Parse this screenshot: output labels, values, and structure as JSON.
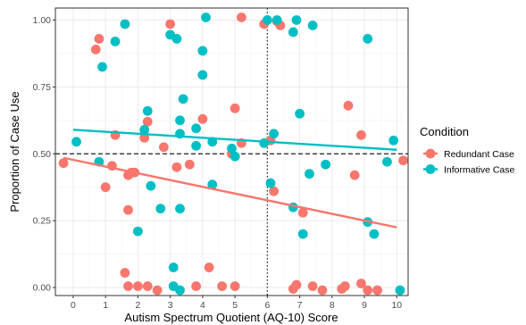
{
  "chart_data": {
    "type": "scatter",
    "xlabel": "Autism Spectrum Quotient (AQ-10) Score",
    "ylabel": "Proportion of Case Use",
    "xlim": [
      -0.55,
      10.35
    ],
    "ylim": [
      -0.03,
      1.045
    ],
    "x_ticks": [
      "0",
      "1",
      "2",
      "3",
      "4",
      "5",
      "6",
      "7",
      "8",
      "9",
      "10"
    ],
    "y_ticks": [
      "0.00",
      "0.25",
      "0.50",
      "0.75",
      "1.00"
    ],
    "grid": true,
    "reference_lines": {
      "horizontal_dashed_y": 0.5,
      "vertical_dotted_x": 6
    },
    "legend_title": "Condition",
    "legend_position": "right",
    "series": [
      {
        "name": "Redundant Case",
        "color": "#F8766D",
        "trend": [
          [
            -0.3,
            0.485
          ],
          [
            10,
            0.225
          ]
        ],
        "points": [
          [
            -0.3,
            0.465
          ],
          [
            0.7,
            0.89
          ],
          [
            0.8,
            0.93
          ],
          [
            1,
            0.375
          ],
          [
            1.2,
            0.455
          ],
          [
            1.3,
            0.57
          ],
          [
            1.6,
            0.055
          ],
          [
            1.7,
            0.42
          ],
          [
            1.7,
            0.29
          ],
          [
            1.7,
            0.005
          ],
          [
            1.8,
            0.43
          ],
          [
            1.9,
            0.43
          ],
          [
            2,
            0.005
          ],
          [
            2.2,
            0.56
          ],
          [
            2.3,
            0.62
          ],
          [
            2.3,
            0.005
          ],
          [
            2.6,
            -0.01
          ],
          [
            2.8,
            0.525
          ],
          [
            3,
            0.985
          ],
          [
            3.2,
            0.45
          ],
          [
            3.6,
            0.46
          ],
          [
            3.8,
            0.005
          ],
          [
            4,
            0.63
          ],
          [
            4.2,
            0.075
          ],
          [
            4.6,
            0.005
          ],
          [
            4.9,
            0.5
          ],
          [
            5,
            0.67
          ],
          [
            5,
            0.005
          ],
          [
            5.2,
            1.01
          ],
          [
            5.2,
            0.54
          ],
          [
            5.9,
            0.985
          ],
          [
            6.1,
            0.55
          ],
          [
            6.2,
            0.36
          ],
          [
            6.3,
            0.995
          ],
          [
            6.4,
            0.98
          ],
          [
            6.8,
            -0.005
          ],
          [
            6.9,
            0.01
          ],
          [
            7.1,
            0.28
          ],
          [
            7.4,
            0.005
          ],
          [
            7.7,
            -0.01
          ],
          [
            8.3,
            -0.005
          ],
          [
            8.4,
            0.005
          ],
          [
            8.5,
            0.68
          ],
          [
            8.7,
            0.42
          ],
          [
            8.9,
            0.57
          ],
          [
            8.9,
            0.015
          ],
          [
            9.1,
            -0.01
          ],
          [
            9.4,
            -0.01
          ],
          [
            10.2,
            0.475
          ]
        ]
      },
      {
        "name": "Informative Case",
        "color": "#00BFC4",
        "trend": [
          [
            0,
            0.59
          ],
          [
            10,
            0.515
          ]
        ],
        "points": [
          [
            0.1,
            0.545
          ],
          [
            0.8,
            0.47
          ],
          [
            0.9,
            0.825
          ],
          [
            1.3,
            0.92
          ],
          [
            1.6,
            0.985
          ],
          [
            2,
            0.21
          ],
          [
            2.2,
            0.59
          ],
          [
            2.3,
            0.66
          ],
          [
            2.4,
            0.38
          ],
          [
            2.7,
            0.295
          ],
          [
            3,
            0.945
          ],
          [
            3.1,
            0.075
          ],
          [
            3.1,
            0.005
          ],
          [
            3.2,
            0.93
          ],
          [
            3.3,
            0.295
          ],
          [
            3.3,
            0.575
          ],
          [
            3.3,
            0.625
          ],
          [
            3.4,
            0.705
          ],
          [
            3.3,
            -0.01
          ],
          [
            3.8,
            0.53
          ],
          [
            3.8,
            0.595
          ],
          [
            4,
            0.795
          ],
          [
            4,
            0.885
          ],
          [
            4.1,
            1.01
          ],
          [
            4.3,
            0.545
          ],
          [
            4.3,
            0.385
          ],
          [
            4.9,
            0.52
          ],
          [
            5,
            0.49
          ],
          [
            5.9,
            0.54
          ],
          [
            6,
            1
          ],
          [
            6.1,
            0.39
          ],
          [
            6.2,
            0.575
          ],
          [
            6.3,
            1
          ],
          [
            6.8,
            0.955
          ],
          [
            6.8,
            0.3
          ],
          [
            6.9,
            1
          ],
          [
            7,
            0.65
          ],
          [
            7.1,
            0.2
          ],
          [
            7.3,
            0.425
          ],
          [
            7.4,
            0.98
          ],
          [
            7.8,
            0.46
          ],
          [
            9.1,
            0.93
          ],
          [
            9.1,
            0.245
          ],
          [
            9.3,
            0.2
          ],
          [
            9.7,
            0.47
          ],
          [
            9.9,
            0.55
          ],
          [
            10.1,
            -0.01
          ]
        ]
      }
    ]
  }
}
